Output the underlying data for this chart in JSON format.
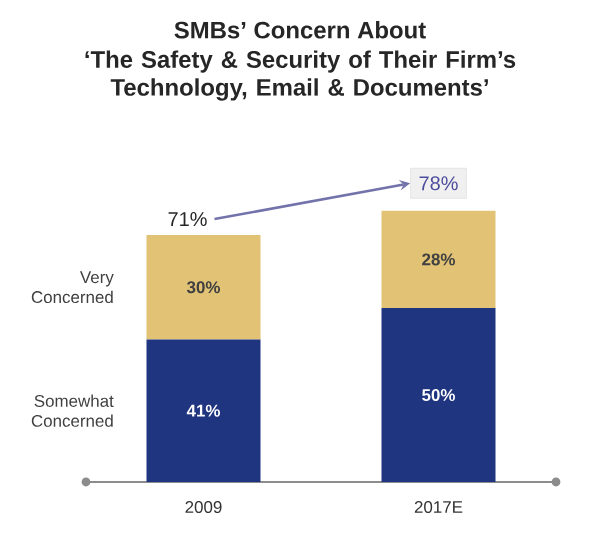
{
  "chart_data": {
    "type": "bar",
    "title": "SMBs’ Concern About",
    "subtitle": "‘The Safety & Security of Their Firm’s Technology, Email & Documents’",
    "categories": [
      "2009",
      "2017E"
    ],
    "stacked": true,
    "series": [
      {
        "name": "Somewhat Concerned",
        "color": "#1f3580",
        "values": [
          41,
          50
        ],
        "value_labels": [
          "41%",
          "50%"
        ]
      },
      {
        "name": "Very Concerned",
        "color": "#e2c275",
        "values": [
          30,
          28
        ],
        "value_labels": [
          "30%",
          "28%"
        ]
      }
    ],
    "totals": [
      "71%",
      "78%"
    ]
  }
}
